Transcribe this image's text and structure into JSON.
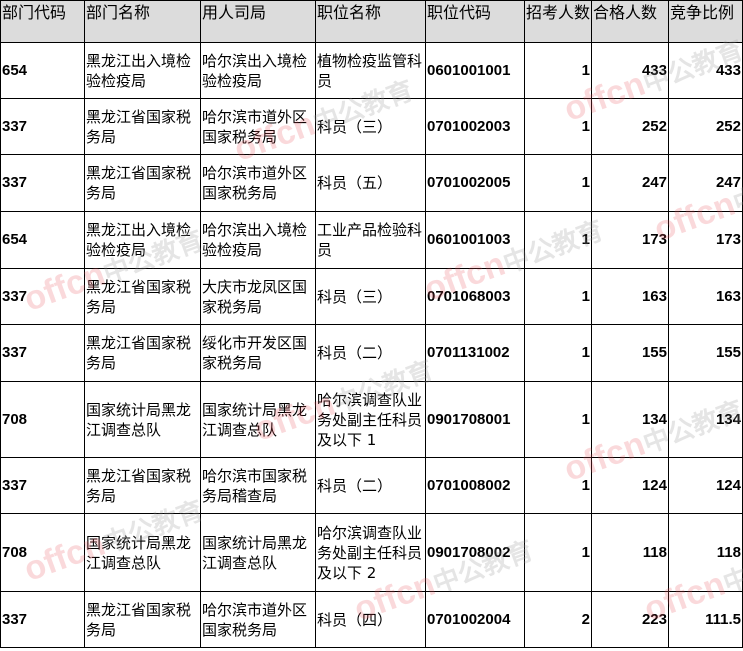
{
  "headers": [
    "部门代码",
    "部门名称",
    "用人司局",
    "职位名称",
    "职位代码",
    "招考人数",
    "合格人数",
    "竞争比例"
  ],
  "rows": [
    {
      "dept_code": "654",
      "dept_name": "黑龙江出入境检验检疫局",
      "bureau": "哈尔滨出入境检验检疫局",
      "position": "植物检疫监管科员",
      "position_code": "0601001001",
      "hires": "1",
      "qualified": "433",
      "ratio": "433"
    },
    {
      "dept_code": "337",
      "dept_name": "黑龙江省国家税务局",
      "bureau": "哈尔滨市道外区国家税务局",
      "position": "科员（三）",
      "position_code": "0701002003",
      "hires": "1",
      "qualified": "252",
      "ratio": "252"
    },
    {
      "dept_code": "337",
      "dept_name": "黑龙江省国家税务局",
      "bureau": "哈尔滨市道外区国家税务局",
      "position": "科员（五）",
      "position_code": "0701002005",
      "hires": "1",
      "qualified": "247",
      "ratio": "247"
    },
    {
      "dept_code": "654",
      "dept_name": "黑龙江出入境检验检疫局",
      "bureau": "哈尔滨出入境检验检疫局",
      "position": "工业产品检验科员",
      "position_code": "0601001003",
      "hires": "1",
      "qualified": "173",
      "ratio": "173"
    },
    {
      "dept_code": "337",
      "dept_name": "黑龙江省国家税务局",
      "bureau": "大庆市龙凤区国家税务局",
      "position": "科员（三）",
      "position_code": "0701068003",
      "hires": "1",
      "qualified": "163",
      "ratio": "163"
    },
    {
      "dept_code": "337",
      "dept_name": "黑龙江省国家税务局",
      "bureau": "绥化市开发区国家税务局",
      "position": "科员（二）",
      "position_code": "0701131002",
      "hires": "1",
      "qualified": "155",
      "ratio": "155"
    },
    {
      "dept_code": "708",
      "dept_name": "国家统计局黑龙江调查总队",
      "bureau": "国家统计局黑龙江调查总队",
      "position": "哈尔滨调查队业务处副主任科员及以下 1",
      "position_code": "0901708001",
      "hires": "1",
      "qualified": "134",
      "ratio": "134"
    },
    {
      "dept_code": "337",
      "dept_name": "黑龙江省国家税务局",
      "bureau": "哈尔滨市国家税务局稽查局",
      "position": "科员（二）",
      "position_code": "0701008002",
      "hires": "1",
      "qualified": "124",
      "ratio": "124"
    },
    {
      "dept_code": "708",
      "dept_name": "国家统计局黑龙江调查总队",
      "bureau": "国家统计局黑龙江调查总队",
      "position": "哈尔滨调查队业务处副主任科员及以下 2",
      "position_code": "0901708002",
      "hires": "1",
      "qualified": "118",
      "ratio": "118"
    },
    {
      "dept_code": "337",
      "dept_name": "黑龙江省国家税务局",
      "bureau": "哈尔滨市道外区国家税务局",
      "position": "科员（四）",
      "position_code": "0701002004",
      "hires": "2",
      "qualified": "223",
      "ratio": "111.5"
    }
  ],
  "watermark": {
    "logo": "offcn",
    "brand": "中公教育"
  }
}
